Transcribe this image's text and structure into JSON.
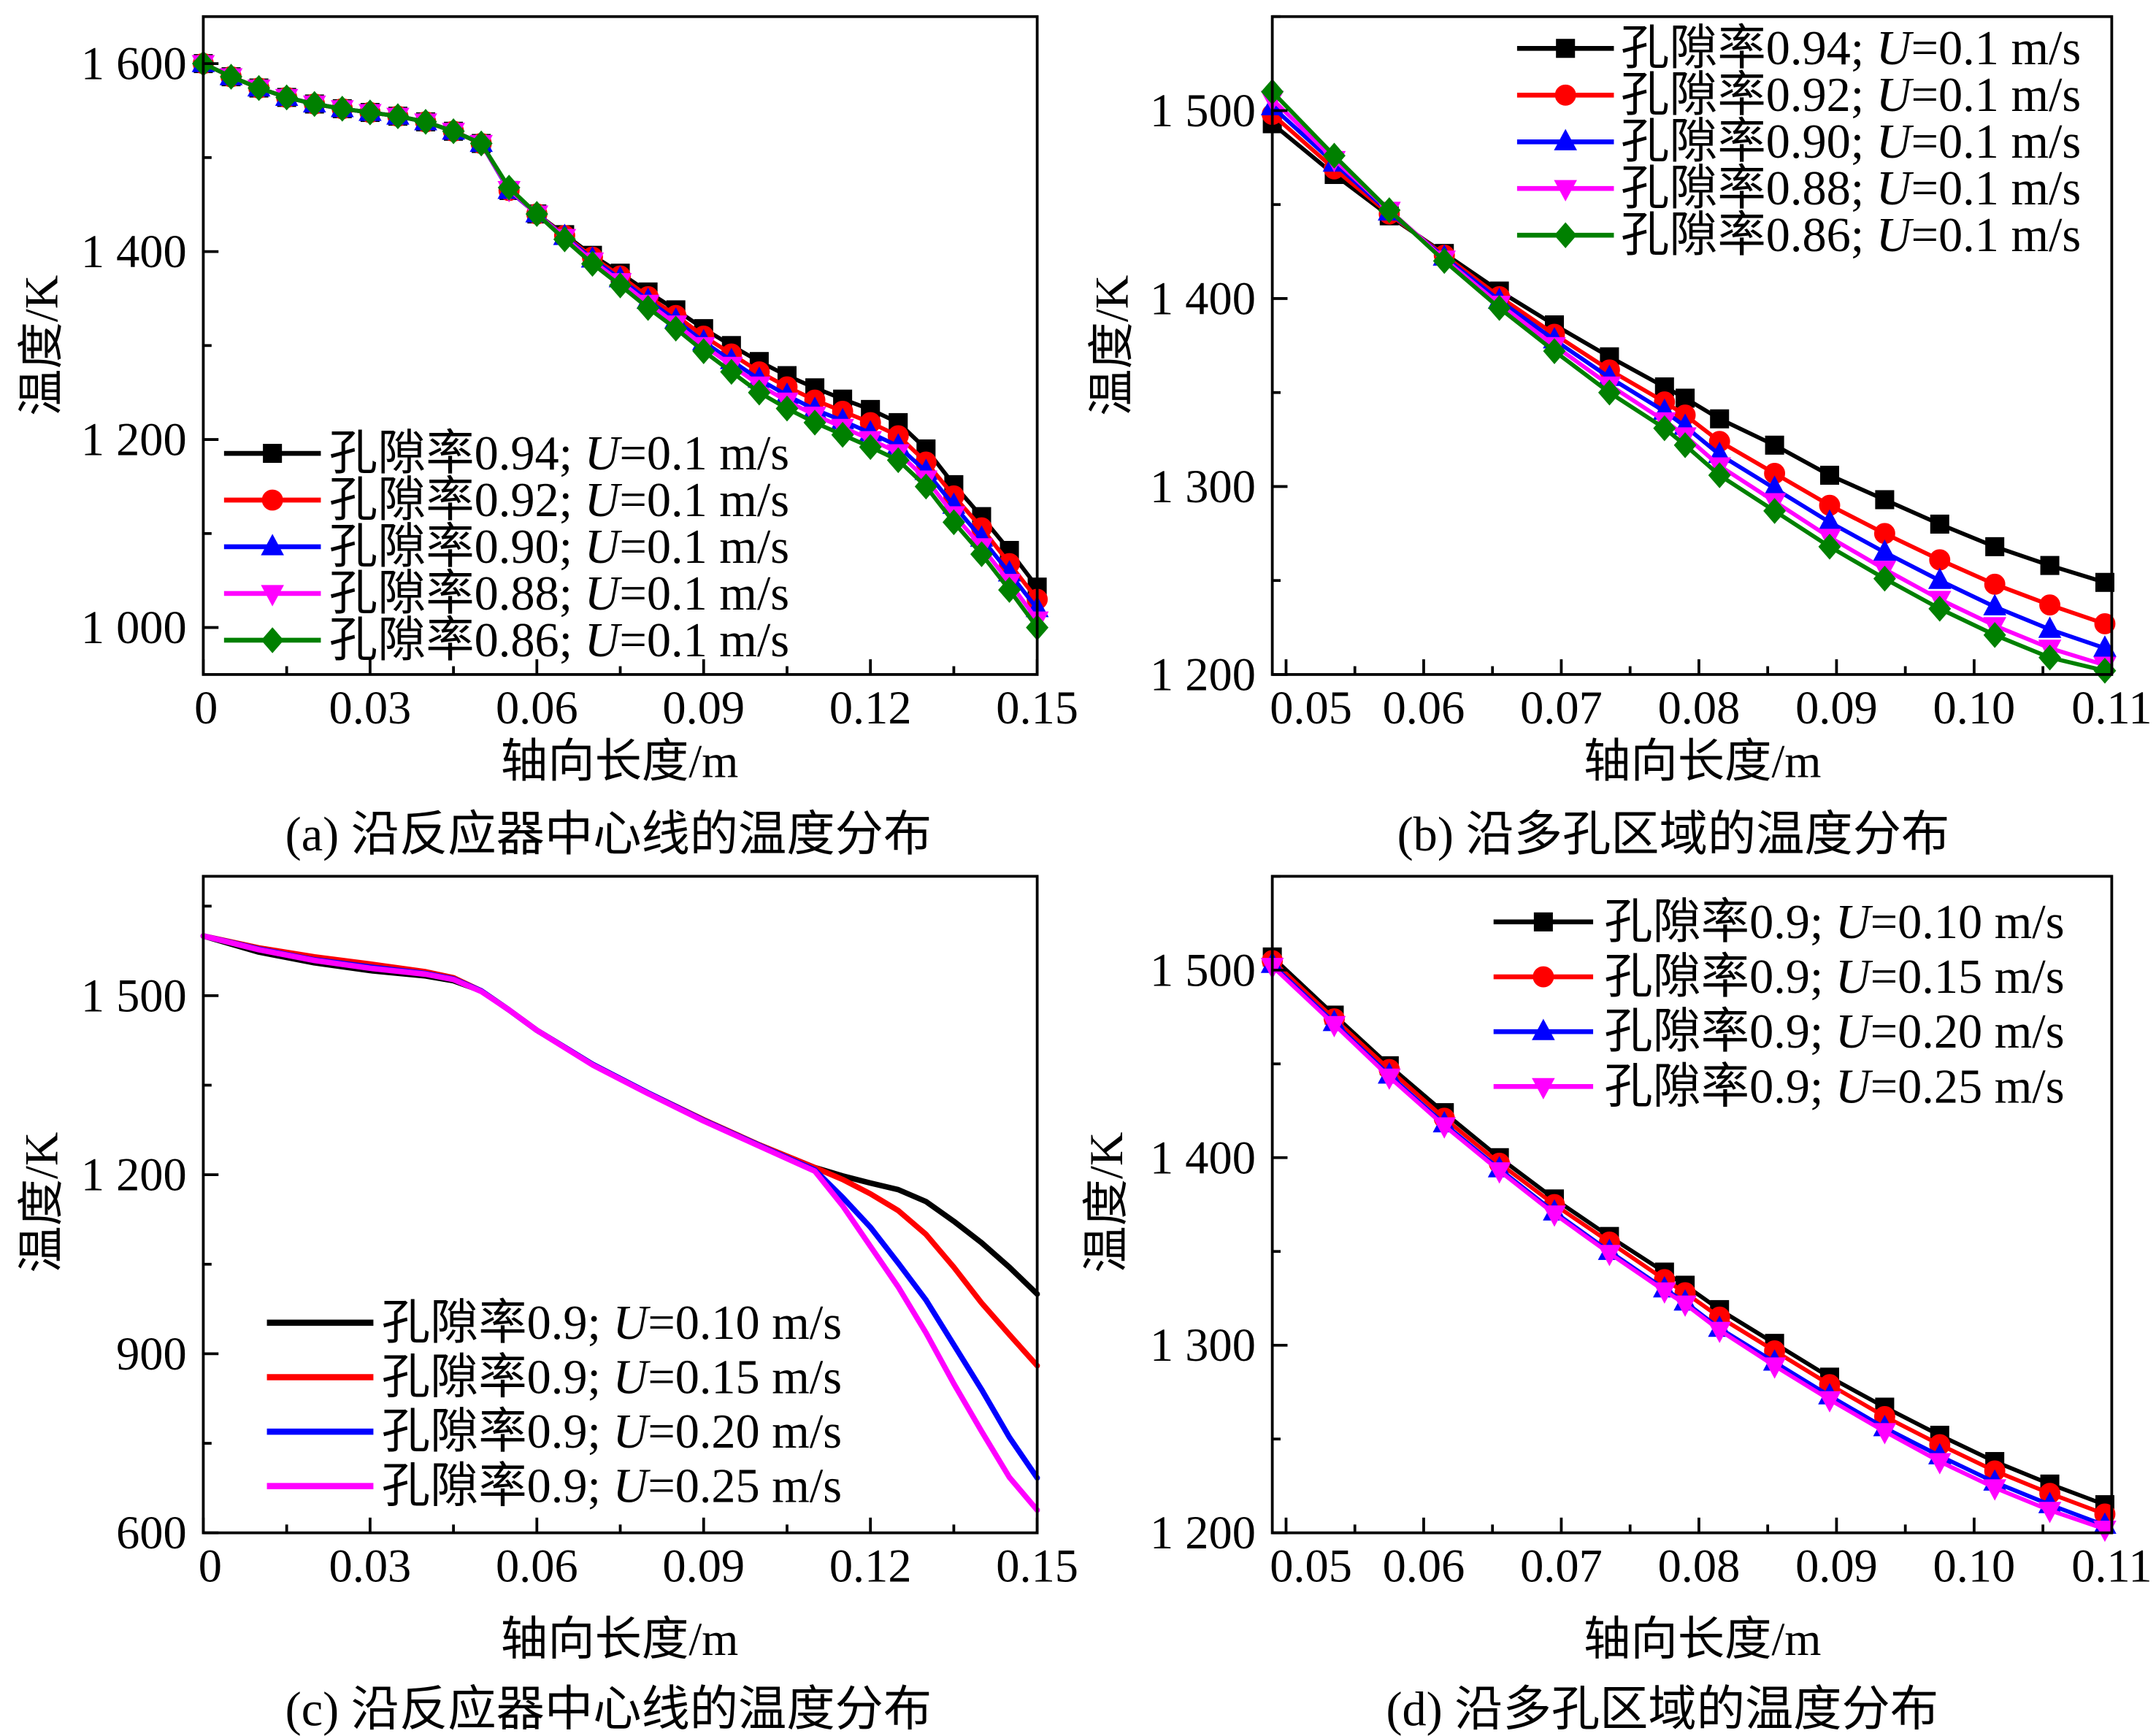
{
  "chart_data": [
    {
      "type": "line",
      "caption": "(a) 沿反应器中心线的温度分布",
      "xlabel": "轴向长度/m",
      "ylabel": "温度/K",
      "grid": false,
      "legend_position": "lower-left",
      "xlim": [
        0,
        0.15
      ],
      "ylim": [
        950,
        1650
      ],
      "xticks": [
        0,
        0.03,
        0.06,
        0.09,
        0.12,
        0.15
      ],
      "xtick_labels": [
        "0",
        "0.03",
        "0.06",
        "0.09",
        "0.12",
        "0.15"
      ],
      "yticks": [
        1000,
        1200,
        1400,
        1600
      ],
      "ytick_labels": [
        "1 000",
        "1 200",
        "1 400",
        "1 600"
      ],
      "x": [
        0,
        0.005,
        0.01,
        0.015,
        0.02,
        0.025,
        0.03,
        0.035,
        0.04,
        0.045,
        0.05,
        0.055,
        0.06,
        0.065,
        0.07,
        0.075,
        0.08,
        0.085,
        0.09,
        0.095,
        0.1,
        0.105,
        0.11,
        0.115,
        0.12,
        0.125,
        0.13,
        0.135,
        0.14,
        0.145,
        0.15
      ],
      "series": [
        {
          "name": "孔隙率0.94; U=0.1 m/s",
          "color": "#000000",
          "marker": "square",
          "values": [
            1600,
            1586,
            1574,
            1564,
            1557,
            1552,
            1548,
            1544,
            1538,
            1528,
            1515,
            1465,
            1440,
            1418,
            1396,
            1377,
            1357,
            1338,
            1318,
            1300,
            1283,
            1268,
            1255,
            1243,
            1232,
            1218,
            1190,
            1152,
            1118,
            1082,
            1043
          ]
        },
        {
          "name": "孔隙率0.92; U=0.1 m/s",
          "color": "#ff0000",
          "marker": "circle",
          "values": [
            1600,
            1586,
            1574,
            1564,
            1557,
            1552,
            1548,
            1544,
            1538,
            1528,
            1515,
            1465,
            1440,
            1417,
            1394,
            1374,
            1352,
            1332,
            1310,
            1291,
            1272,
            1256,
            1242,
            1230,
            1218,
            1204,
            1176,
            1140,
            1106,
            1068,
            1030
          ]
        },
        {
          "name": "孔隙率0.90; U=0.1 m/s",
          "color": "#0000ff",
          "marker": "triangle-up",
          "values": [
            1600,
            1586,
            1574,
            1564,
            1557,
            1552,
            1548,
            1544,
            1538,
            1528,
            1515,
            1465,
            1440,
            1416,
            1392,
            1371,
            1348,
            1327,
            1304,
            1284,
            1264,
            1247,
            1232,
            1220,
            1207,
            1193,
            1166,
            1130,
            1095,
            1058,
            1020
          ]
        },
        {
          "name": "孔隙率0.88; U=0.1 m/s",
          "color": "#ff00ff",
          "marker": "triangle-down",
          "values": [
            1600,
            1586,
            1574,
            1564,
            1557,
            1552,
            1548,
            1544,
            1538,
            1528,
            1515,
            1466,
            1440,
            1415,
            1390,
            1368,
            1345,
            1323,
            1300,
            1279,
            1258,
            1241,
            1226,
            1213,
            1200,
            1186,
            1158,
            1120,
            1086,
            1048,
            1008
          ]
        },
        {
          "name": "孔隙率0.86; U=0.1 m/s",
          "color": "#008000",
          "marker": "diamond",
          "values": [
            1600,
            1586,
            1574,
            1564,
            1557,
            1552,
            1548,
            1544,
            1538,
            1528,
            1515,
            1468,
            1440,
            1413,
            1387,
            1364,
            1340,
            1318,
            1294,
            1272,
            1250,
            1233,
            1218,
            1205,
            1192,
            1178,
            1150,
            1112,
            1078,
            1040,
            1000
          ]
        }
      ]
    },
    {
      "type": "line",
      "caption": "(b) 沿多孔区域的温度分布",
      "xlabel": "轴向长度/m",
      "ylabel": "温度/K",
      "grid": false,
      "legend_position": "top-right",
      "xlim": [
        0.049,
        0.11
      ],
      "ylim": [
        1200,
        1550
      ],
      "xticks": [
        0.05,
        0.06,
        0.07,
        0.08,
        0.09,
        0.1,
        0.11
      ],
      "xtick_labels": [
        "0.05",
        "0.06",
        "0.07",
        "0.08",
        "0.09",
        "0.10",
        "0.11"
      ],
      "yticks": [
        1200,
        1300,
        1400,
        1500
      ],
      "ytick_labels": [
        "1 200",
        "1 300",
        "1 400",
        "1 500"
      ],
      "x": [
        0.049,
        0.0535,
        0.0575,
        0.0615,
        0.0655,
        0.0695,
        0.0735,
        0.0775,
        0.079,
        0.0815,
        0.0855,
        0.0895,
        0.0935,
        0.0975,
        0.1015,
        0.1055,
        0.1095
      ],
      "series": [
        {
          "name": "孔隙率0.94; U=0.1 m/s",
          "color": "#000000",
          "marker": "square",
          "values": [
            1493,
            1466,
            1444,
            1424,
            1404,
            1386,
            1369,
            1353,
            1347,
            1336,
            1322,
            1306,
            1293,
            1280,
            1268,
            1258,
            1249
          ]
        },
        {
          "name": "孔隙率0.92; U=0.1 m/s",
          "color": "#ff0000",
          "marker": "circle",
          "values": [
            1498,
            1469,
            1445,
            1423,
            1401,
            1381,
            1362,
            1345,
            1338,
            1324,
            1307,
            1290,
            1275,
            1261,
            1248,
            1237,
            1227
          ]
        },
        {
          "name": "孔隙率0.90; U=0.1 m/s",
          "color": "#0000ff",
          "marker": "triangle-up",
          "values": [
            1502,
            1472,
            1446,
            1422,
            1399,
            1378,
            1358,
            1340,
            1332,
            1317,
            1299,
            1281,
            1265,
            1250,
            1236,
            1224,
            1214
          ]
        },
        {
          "name": "孔隙率0.88; U=0.1 m/s",
          "color": "#ff00ff",
          "marker": "triangle-down",
          "values": [
            1506,
            1474,
            1447,
            1421,
            1397,
            1375,
            1354,
            1335,
            1327,
            1311,
            1292,
            1273,
            1256,
            1240,
            1226,
            1214,
            1205
          ]
        },
        {
          "name": "孔隙率0.86; U=0.1 m/s",
          "color": "#008000",
          "marker": "diamond",
          "values": [
            1510,
            1476,
            1447,
            1420,
            1395,
            1372,
            1350,
            1331,
            1322,
            1306,
            1287,
            1268,
            1251,
            1235,
            1221,
            1209,
            1202
          ]
        }
      ]
    },
    {
      "type": "line",
      "caption": "(c) 沿反应器中心线的温度分布",
      "xlabel": "轴向长度/m",
      "ylabel": "温度/K",
      "grid": false,
      "legend_position": "lower-left",
      "xlim": [
        0,
        0.15
      ],
      "ylim": [
        600,
        1700
      ],
      "xticks": [
        0,
        0.03,
        0.06,
        0.09,
        0.12,
        0.15
      ],
      "xtick_labels": [
        "0",
        "0.03",
        "0.06",
        "0.09",
        "0.12",
        "0.15"
      ],
      "yticks": [
        600,
        900,
        1200,
        1500
      ],
      "ytick_labels": [
        "600",
        "900",
        "1 200",
        "1 500"
      ],
      "x": [
        0,
        0.01,
        0.02,
        0.03,
        0.04,
        0.045,
        0.05,
        0.055,
        0.06,
        0.07,
        0.08,
        0.09,
        0.1,
        0.11,
        0.115,
        0.12,
        0.125,
        0.13,
        0.135,
        0.14,
        0.145,
        0.15
      ],
      "series": [
        {
          "name": "孔隙率0.9; U=0.10 m/s",
          "color": "#000000",
          "marker": "none",
          "values": [
            1600,
            1573,
            1555,
            1542,
            1533,
            1525,
            1508,
            1476,
            1442,
            1385,
            1337,
            1292,
            1250,
            1212,
            1198,
            1186,
            1175,
            1155,
            1122,
            1086,
            1045,
            1000
          ]
        },
        {
          "name": "孔隙率0.9; U=0.15 m/s",
          "color": "#ff0000",
          "marker": "none",
          "values": [
            1600,
            1580,
            1565,
            1553,
            1540,
            1530,
            1508,
            1476,
            1442,
            1385,
            1337,
            1292,
            1250,
            1212,
            1192,
            1168,
            1140,
            1100,
            1045,
            985,
            932,
            880
          ]
        },
        {
          "name": "孔隙率0.9; U=0.20 m/s",
          "color": "#0000ff",
          "marker": "none",
          "values": [
            1600,
            1578,
            1560,
            1548,
            1537,
            1528,
            1508,
            1476,
            1442,
            1385,
            1337,
            1291,
            1249,
            1208,
            1162,
            1112,
            1052,
            990,
            915,
            840,
            760,
            692
          ]
        },
        {
          "name": "孔隙率0.9; U=0.25 m/s",
          "color": "#ff00ff",
          "marker": "none",
          "values": [
            1600,
            1577,
            1559,
            1546,
            1536,
            1527,
            1507,
            1476,
            1442,
            1384,
            1336,
            1290,
            1248,
            1206,
            1148,
            1080,
            1012,
            935,
            850,
            770,
            693,
            638
          ]
        }
      ]
    },
    {
      "type": "line",
      "caption": "(d) 沿多孔区域的温度分布",
      "xlabel": "轴向长度/m",
      "ylabel": "温度/K",
      "grid": false,
      "legend_position": "top-right",
      "xlim": [
        0.049,
        0.11
      ],
      "ylim": [
        1200,
        1550
      ],
      "xticks": [
        0.05,
        0.06,
        0.07,
        0.08,
        0.09,
        0.1,
        0.11
      ],
      "xtick_labels": [
        "0.05",
        "0.06",
        "0.07",
        "0.08",
        "0.09",
        "0.10",
        "0.11"
      ],
      "yticks": [
        1200,
        1300,
        1400,
        1500
      ],
      "ytick_labels": [
        "1 200",
        "1 300",
        "1 400",
        "1 500"
      ],
      "x": [
        0.049,
        0.0535,
        0.0575,
        0.0615,
        0.0655,
        0.0695,
        0.0735,
        0.0775,
        0.079,
        0.0815,
        0.0855,
        0.0895,
        0.0935,
        0.0975,
        0.1015,
        0.1055,
        0.1095
      ],
      "series": [
        {
          "name": "孔隙率0.9; U=0.10 m/s",
          "color": "#000000",
          "marker": "square",
          "values": [
            1507,
            1476,
            1449,
            1424,
            1400,
            1378,
            1358,
            1339,
            1332,
            1319,
            1301,
            1283,
            1267,
            1252,
            1238,
            1226,
            1215
          ]
        },
        {
          "name": "孔隙率0.9; U=0.15 m/s",
          "color": "#ff0000",
          "marker": "circle",
          "values": [
            1505,
            1474,
            1447,
            1421,
            1397,
            1375,
            1355,
            1335,
            1328,
            1315,
            1297,
            1279,
            1262,
            1247,
            1233,
            1221,
            1210
          ]
        },
        {
          "name": "孔隙率0.9; U=0.20 m/s",
          "color": "#0000ff",
          "marker": "triangle-up",
          "values": [
            1503,
            1472,
            1444,
            1418,
            1394,
            1371,
            1350,
            1330,
            1323,
            1309,
            1291,
            1273,
            1256,
            1241,
            1227,
            1215,
            1204
          ]
        },
        {
          "name": "孔隙率0.9; U=0.25 m/s",
          "color": "#ff00ff",
          "marker": "triangle-down",
          "values": [
            1502,
            1471,
            1443,
            1417,
            1393,
            1370,
            1349,
            1329,
            1322,
            1308,
            1289,
            1271,
            1254,
            1238,
            1224,
            1212,
            1202
          ]
        }
      ]
    }
  ]
}
